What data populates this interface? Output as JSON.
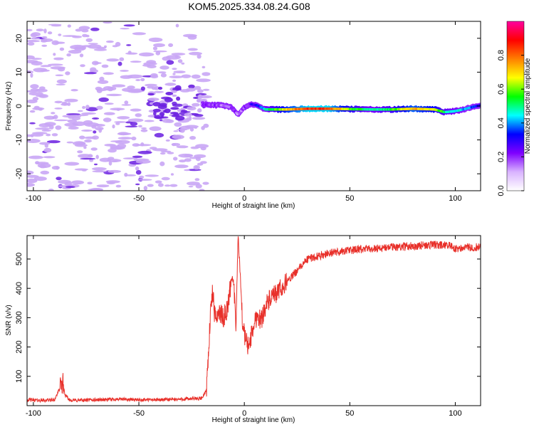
{
  "figure_title": "KOM5.2025.334.08.24.G08",
  "colors": {
    "background": "#ffffff",
    "axis": "#000000",
    "noise": "#c9a6f5",
    "noise_dark": "#6a1fe0",
    "snr_line": "#e8302a"
  },
  "chart_data": [
    {
      "type": "heatmap",
      "title": "KOM5.2025.334.08.24.G08",
      "xlabel": "Height of straight line (km)",
      "ylabel": "Frequency (Hz)",
      "xlim": [
        -103,
        112
      ],
      "ylim": [
        -25,
        25
      ],
      "x_ticks": [
        -100,
        -50,
        0,
        50,
        100
      ],
      "x_tick_labels": [
        "-100",
        "-50",
        "0",
        "50",
        "100"
      ],
      "y_ticks": [
        -20,
        -10,
        0,
        10,
        20
      ],
      "y_tick_labels": [
        "-20",
        "-10",
        "0",
        "10",
        "20"
      ],
      "colorbar": {
        "label": "Normalized spectral amplitude",
        "range": [
          0,
          1
        ],
        "ticks": [
          0.0,
          0.2,
          0.4,
          0.6,
          0.8
        ],
        "tick_labels": [
          "0.0",
          "0.2",
          "0.4",
          "0.6",
          "0.8"
        ],
        "colormap": [
          "#ffffff",
          "#d9b3ff",
          "#7f00ff",
          "#0000ff",
          "#00ffff",
          "#00ff00",
          "#ffff00",
          "#ff7f00",
          "#ff0000",
          "#ff00a0"
        ]
      },
      "signal_trace": {
        "x": [
          -20,
          -15,
          -10,
          -6,
          -3,
          0,
          3,
          6,
          10,
          20,
          30,
          40,
          50,
          60,
          70,
          80,
          90,
          95,
          100,
          105,
          110,
          112
        ],
        "freq": [
          0.5,
          0.3,
          0.2,
          -0.5,
          -2.5,
          -0.5,
          0.6,
          0.2,
          -1.0,
          -1.0,
          -0.8,
          -0.8,
          -0.9,
          -1.0,
          -1.0,
          -0.8,
          -1.0,
          -1.8,
          -1.5,
          -0.8,
          0.0,
          0.2
        ],
        "amplitude": [
          0.2,
          0.2,
          0.15,
          0.2,
          0.15,
          0.2,
          0.25,
          0.3,
          0.45,
          0.7,
          0.85,
          0.85,
          0.6,
          0.45,
          0.55,
          0.75,
          0.65,
          0.5,
          0.45,
          0.4,
          0.35,
          0.3
        ]
      }
    },
    {
      "type": "line",
      "xlabel": "Height of straight line (km)",
      "ylabel": "SNR (v/v)",
      "xlim": [
        -103,
        112
      ],
      "ylim": [
        0,
        580
      ],
      "x_ticks": [
        -100,
        -50,
        0,
        50,
        100
      ],
      "x_tick_labels": [
        "-100",
        "-50",
        "0",
        "50",
        "100"
      ],
      "y_ticks": [
        100,
        200,
        300,
        400,
        500
      ],
      "y_tick_labels": [
        "100",
        "200",
        "300",
        "400",
        "500"
      ],
      "series": [
        {
          "name": "SNR",
          "x": [
            -103,
            -95,
            -90,
            -86,
            -85,
            -83,
            -80,
            -70,
            -60,
            -50,
            -40,
            -30,
            -20,
            -18,
            -17,
            -16,
            -15,
            -14,
            -12,
            -10,
            -8,
            -6,
            -5,
            -4,
            -3,
            -2,
            -1,
            0,
            2,
            4,
            6,
            8,
            10,
            12,
            15,
            20,
            25,
            30,
            35,
            40,
            45,
            50,
            60,
            70,
            80,
            90,
            98,
            100,
            105,
            112
          ],
          "values": [
            20,
            18,
            20,
            80,
            35,
            20,
            18,
            20,
            22,
            20,
            20,
            22,
            25,
            55,
            180,
            320,
            390,
            300,
            320,
            300,
            330,
            440,
            420,
            250,
            580,
            460,
            300,
            240,
            200,
            260,
            310,
            290,
            340,
            360,
            380,
            420,
            460,
            500,
            510,
            520,
            525,
            530,
            535,
            540,
            545,
            548,
            545,
            535,
            540,
            540
          ]
        }
      ]
    }
  ]
}
